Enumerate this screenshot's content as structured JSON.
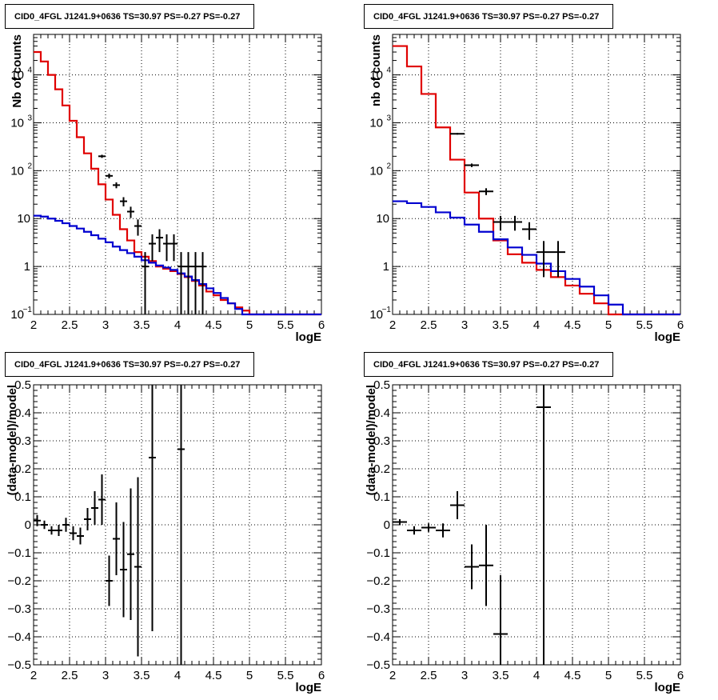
{
  "colors": {
    "data": "#000000",
    "total_model": "#e00000",
    "background_model": "#0000d0",
    "grid": "#000000"
  },
  "chart_data": [
    {
      "type": "line",
      "title": "CID0_4FGL J1241.9+0636 TS=30.97 PS=-0.27 PS=-0.27",
      "xlabel": "logE",
      "ylabel": "Nb of counts",
      "xlim": [
        2,
        6
      ],
      "ylim": [
        0.1,
        70000
      ],
      "yscale": "log",
      "grid": true,
      "xticks": [
        "2",
        "2.5",
        "3",
        "3.5",
        "4",
        "4.5",
        "5",
        "5.5",
        "6"
      ],
      "yticks": [
        {
          "value": 0.1,
          "base": "10",
          "exp": "−1"
        },
        {
          "value": 1,
          "base": "1",
          "exp": ""
        },
        {
          "value": 10,
          "base": "10",
          "exp": ""
        },
        {
          "value": 100,
          "base": "10",
          "exp": "2"
        },
        {
          "value": 1000,
          "base": "10",
          "exp": "3"
        },
        {
          "value": 10000,
          "base": "10",
          "exp": "4"
        }
      ],
      "series": [
        {
          "role": "total_model",
          "style": "step",
          "edges": [
            2.0,
            2.1,
            2.2,
            2.3,
            2.4,
            2.5,
            2.6,
            2.7,
            2.8,
            2.9,
            3.0,
            3.1,
            3.2,
            3.3,
            3.4,
            3.5,
            3.6,
            3.7,
            3.8,
            3.9,
            4.0,
            4.1,
            4.2,
            4.3,
            4.4,
            4.5,
            4.6,
            4.7,
            4.8,
            4.9,
            5.0,
            5.1,
            5.2,
            5.3,
            5.4,
            5.5,
            5.6,
            5.7,
            5.8,
            5.9,
            6.0
          ],
          "values": [
            30000,
            19000,
            10000,
            5000,
            2300,
            1100,
            500,
            230,
            110,
            52,
            25,
            12,
            6,
            3.5,
            2.0,
            1.6,
            1.3,
            1.0,
            0.9,
            0.8,
            0.7,
            0.6,
            0.5,
            0.4,
            0.3,
            0.25,
            0.2,
            0.17,
            0.14,
            0.12,
            0.1,
            0.1,
            0.1,
            0.1,
            0.1,
            0.1,
            0.1,
            0.1,
            0.1,
            0.1
          ]
        },
        {
          "role": "background_model",
          "style": "step",
          "edges": [
            2.0,
            2.1,
            2.2,
            2.3,
            2.4,
            2.5,
            2.6,
            2.7,
            2.8,
            2.9,
            3.0,
            3.1,
            3.2,
            3.3,
            3.4,
            3.5,
            3.6,
            3.7,
            3.8,
            3.9,
            4.0,
            4.1,
            4.2,
            4.3,
            4.4,
            4.5,
            4.6,
            4.7,
            4.8,
            4.9,
            5.0,
            5.1,
            5.2,
            5.3,
            5.4,
            5.5,
            5.6,
            5.7,
            5.8,
            5.9,
            6.0
          ],
          "values": [
            11.5,
            11,
            10,
            9,
            8,
            7,
            6.2,
            5.3,
            4.5,
            3.8,
            3.2,
            2.6,
            2.2,
            1.9,
            1.6,
            1.35,
            1.2,
            1.05,
            0.95,
            0.85,
            0.72,
            0.62,
            0.52,
            0.43,
            0.35,
            0.28,
            0.22,
            0.17,
            0.13,
            0.1,
            0.1,
            0.1,
            0.1,
            0.1,
            0.1,
            0.1,
            0.1,
            0.1,
            0.1,
            0.1
          ]
        },
        {
          "role": "data",
          "style": "errorbar",
          "points": [
            {
              "x": 2.95,
              "xerr": 0.05,
              "y": 200,
              "ylo": 185,
              "yhi": 215
            },
            {
              "x": 3.05,
              "xerr": 0.05,
              "y": 78,
              "ylo": 69,
              "yhi": 87
            },
            {
              "x": 3.15,
              "xerr": 0.05,
              "y": 50,
              "ylo": 43,
              "yhi": 57
            },
            {
              "x": 3.25,
              "xerr": 0.05,
              "y": 23,
              "ylo": 18,
              "yhi": 28
            },
            {
              "x": 3.35,
              "xerr": 0.05,
              "y": 14,
              "ylo": 10.3,
              "yhi": 17.7
            },
            {
              "x": 3.45,
              "xerr": 0.05,
              "y": 7,
              "ylo": 4.4,
              "yhi": 9.6
            },
            {
              "x": 3.55,
              "xerr": 0.05,
              "y": 1,
              "ylo": 0.1,
              "yhi": 2.0
            },
            {
              "x": 3.65,
              "xerr": 0.05,
              "y": 3,
              "ylo": 1.3,
              "yhi": 4.7
            },
            {
              "x": 3.75,
              "xerr": 0.05,
              "y": 4,
              "ylo": 2.0,
              "yhi": 6.0
            },
            {
              "x": 3.85,
              "xerr": 0.05,
              "y": 3,
              "ylo": 1.3,
              "yhi": 4.7
            },
            {
              "x": 3.95,
              "xerr": 0.05,
              "y": 3,
              "ylo": 1.3,
              "yhi": 4.7
            },
            {
              "x": 4.05,
              "xerr": 0.05,
              "y": 1,
              "ylo": 0.1,
              "yhi": 2.0
            },
            {
              "x": 4.15,
              "xerr": 0.05,
              "y": 1,
              "ylo": 0.1,
              "yhi": 2.0
            },
            {
              "x": 4.25,
              "xerr": 0.05,
              "y": 1,
              "ylo": 0.1,
              "yhi": 2.0
            },
            {
              "x": 4.35,
              "xerr": 0.05,
              "y": 1,
              "ylo": 0.1,
              "yhi": 2.0
            }
          ]
        }
      ]
    },
    {
      "type": "line",
      "title": "CID0_4FGL J1241.9+0636 TS=30.97 PS=-0.27 PS=-0.27",
      "xlabel": "logE",
      "ylabel": "nb of counts",
      "xlim": [
        2,
        6
      ],
      "ylim": [
        0.1,
        70000
      ],
      "yscale": "log",
      "grid": true,
      "xticks": [
        "2",
        "2.5",
        "3",
        "3.5",
        "4",
        "4.5",
        "5",
        "5.5",
        "6"
      ],
      "yticks": [
        {
          "value": 0.1,
          "base": "10",
          "exp": "−1"
        },
        {
          "value": 1,
          "base": "1",
          "exp": ""
        },
        {
          "value": 10,
          "base": "10",
          "exp": ""
        },
        {
          "value": 100,
          "base": "10",
          "exp": "2"
        },
        {
          "value": 1000,
          "base": "10",
          "exp": "3"
        },
        {
          "value": 10000,
          "base": "10",
          "exp": "4"
        }
      ],
      "series": [
        {
          "role": "total_model",
          "style": "step",
          "edges": [
            2.0,
            2.2,
            2.4,
            2.6,
            2.8,
            3.0,
            3.2,
            3.4,
            3.6,
            3.8,
            4.0,
            4.2,
            4.4,
            4.6,
            4.8,
            5.0,
            5.2,
            5.4,
            5.6,
            5.8,
            6.0
          ],
          "values": [
            40000,
            15000,
            4000,
            800,
            170,
            35,
            10,
            3.5,
            1.8,
            1.2,
            0.85,
            0.6,
            0.4,
            0.27,
            0.17,
            0.1,
            0.1,
            0.1,
            0.1,
            0.1
          ]
        },
        {
          "role": "background_model",
          "style": "step",
          "edges": [
            2.0,
            2.2,
            2.4,
            2.6,
            2.8,
            3.0,
            3.2,
            3.4,
            3.6,
            3.8,
            4.0,
            4.2,
            4.4,
            4.6,
            4.8,
            5.0,
            5.2,
            5.4,
            5.6,
            5.8,
            6.0
          ],
          "values": [
            23,
            21,
            17.5,
            13.5,
            10.5,
            7.5,
            5.3,
            3.7,
            2.5,
            1.75,
            1.15,
            0.8,
            0.55,
            0.38,
            0.25,
            0.16,
            0.1,
            0.1,
            0.1,
            0.1
          ]
        },
        {
          "role": "data",
          "style": "errorbar",
          "points": [
            {
              "x": 2.9,
              "xerr": 0.1,
              "y": 590,
              "ylo": 566,
              "yhi": 614
            },
            {
              "x": 3.1,
              "xerr": 0.1,
              "y": 130,
              "ylo": 119,
              "yhi": 141
            },
            {
              "x": 3.3,
              "xerr": 0.1,
              "y": 37,
              "ylo": 31,
              "yhi": 43
            },
            {
              "x": 3.5,
              "xerr": 0.1,
              "y": 8.5,
              "ylo": 5.6,
              "yhi": 11.4
            },
            {
              "x": 3.7,
              "xerr": 0.1,
              "y": 8.5,
              "ylo": 5.6,
              "yhi": 11.4
            },
            {
              "x": 3.9,
              "xerr": 0.1,
              "y": 6,
              "ylo": 3.6,
              "yhi": 8.4
            },
            {
              "x": 4.1,
              "xerr": 0.1,
              "y": 2,
              "ylo": 0.6,
              "yhi": 3.4
            },
            {
              "x": 4.3,
              "xerr": 0.1,
              "y": 2,
              "ylo": 0.6,
              "yhi": 3.4
            }
          ]
        }
      ]
    },
    {
      "type": "scatter",
      "title": "CID0_4FGL J1241.9+0636 TS=30.97 PS=-0.27 PS=-0.27",
      "xlabel": "logE",
      "ylabel": "(data-model)/model",
      "xlim": [
        2,
        6
      ],
      "ylim": [
        -0.5,
        0.5
      ],
      "yscale": "linear",
      "grid": true,
      "xticks": [
        "2",
        "2.5",
        "3",
        "3.5",
        "4",
        "4.5",
        "5",
        "5.5",
        "6"
      ],
      "yticks_linear": [
        "−0.5",
        "−0.4",
        "−0.3",
        "−0.2",
        "−0.1",
        "0",
        "0.1",
        "0.2",
        "0.3",
        "0.4",
        "0.5"
      ],
      "series": [
        {
          "role": "data",
          "style": "errorbar",
          "points": [
            {
              "x": 2.05,
              "xerr": 0.05,
              "y": 0.015,
              "ylo": -0.005,
              "yhi": 0.035
            },
            {
              "x": 2.15,
              "xerr": 0.05,
              "y": 0.0,
              "ylo": -0.015,
              "yhi": 0.015
            },
            {
              "x": 2.25,
              "xerr": 0.05,
              "y": -0.02,
              "ylo": -0.035,
              "yhi": -0.005
            },
            {
              "x": 2.35,
              "xerr": 0.05,
              "y": -0.02,
              "ylo": -0.04,
              "yhi": 0.0
            },
            {
              "x": 2.45,
              "xerr": 0.05,
              "y": 0.0,
              "ylo": -0.025,
              "yhi": 0.025
            },
            {
              "x": 2.55,
              "xerr": 0.05,
              "y": -0.03,
              "ylo": -0.055,
              "yhi": -0.005
            },
            {
              "x": 2.65,
              "xerr": 0.05,
              "y": -0.04,
              "ylo": -0.07,
              "yhi": -0.01
            },
            {
              "x": 2.75,
              "xerr": 0.05,
              "y": 0.02,
              "ylo": -0.02,
              "yhi": 0.06
            },
            {
              "x": 2.85,
              "xerr": 0.05,
              "y": 0.06,
              "ylo": 0.0,
              "yhi": 0.12
            },
            {
              "x": 2.95,
              "xerr": 0.05,
              "y": 0.09,
              "ylo": 0.0,
              "yhi": 0.18
            },
            {
              "x": 3.05,
              "xerr": 0.05,
              "y": -0.2,
              "ylo": -0.29,
              "yhi": -0.11
            },
            {
              "x": 3.15,
              "xerr": 0.05,
              "y": -0.05,
              "ylo": -0.18,
              "yhi": 0.08
            },
            {
              "x": 3.25,
              "xerr": 0.05,
              "y": -0.16,
              "ylo": -0.33,
              "yhi": 0.01
            },
            {
              "x": 3.35,
              "xerr": 0.05,
              "y": -0.105,
              "ylo": -0.34,
              "yhi": 0.13
            },
            {
              "x": 3.45,
              "xerr": 0.05,
              "y": -0.15,
              "ylo": -0.47,
              "yhi": 0.17
            },
            {
              "x": 3.65,
              "xerr": 0.05,
              "y": 0.24,
              "ylo": -0.38,
              "yhi": 0.5
            },
            {
              "x": 4.05,
              "xerr": 0.05,
              "y": 0.27,
              "ylo": -0.5,
              "yhi": 0.5
            }
          ]
        }
      ]
    },
    {
      "type": "scatter",
      "title": "CID0_4FGL J1241.9+0636 TS=30.97 PS=-0.27 PS=-0.27",
      "xlabel": "logE",
      "ylabel": "(data-model)/model",
      "xlim": [
        2,
        6
      ],
      "ylim": [
        -0.5,
        0.5
      ],
      "yscale": "linear",
      "grid": true,
      "xticks": [
        "2",
        "2.5",
        "3",
        "3.5",
        "4",
        "4.5",
        "5",
        "5.5",
        "6"
      ],
      "yticks_linear": [
        "−0.5",
        "−0.4",
        "−0.3",
        "−0.2",
        "−0.1",
        "0",
        "0.1",
        "0.2",
        "0.3",
        "0.4",
        "0.5"
      ],
      "series": [
        {
          "role": "data",
          "style": "errorbar",
          "points": [
            {
              "x": 2.1,
              "xerr": 0.1,
              "y": 0.01,
              "ylo": 0.0,
              "yhi": 0.02
            },
            {
              "x": 2.3,
              "xerr": 0.1,
              "y": -0.02,
              "ylo": -0.035,
              "yhi": -0.005
            },
            {
              "x": 2.5,
              "xerr": 0.1,
              "y": -0.01,
              "ylo": -0.025,
              "yhi": 0.005
            },
            {
              "x": 2.7,
              "xerr": 0.1,
              "y": -0.02,
              "ylo": -0.045,
              "yhi": 0.005
            },
            {
              "x": 2.9,
              "xerr": 0.1,
              "y": 0.07,
              "ylo": 0.02,
              "yhi": 0.12
            },
            {
              "x": 3.1,
              "xerr": 0.1,
              "y": -0.15,
              "ylo": -0.23,
              "yhi": -0.07
            },
            {
              "x": 3.3,
              "xerr": 0.1,
              "y": -0.145,
              "ylo": -0.29,
              "yhi": 0.0
            },
            {
              "x": 3.5,
              "xerr": 0.1,
              "y": -0.39,
              "ylo": -0.5,
              "yhi": -0.18
            },
            {
              "x": 4.1,
              "xerr": 0.1,
              "y": 0.42,
              "ylo": -0.5,
              "yhi": 0.5
            }
          ]
        }
      ]
    }
  ]
}
